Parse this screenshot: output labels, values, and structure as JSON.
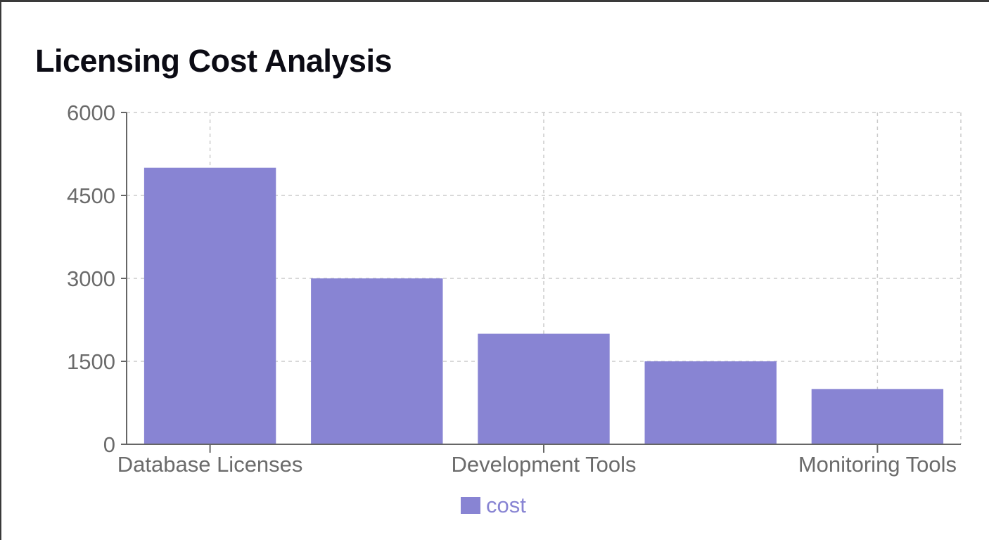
{
  "chart_data": {
    "type": "bar",
    "title": "Licensing Cost Analysis",
    "categories": [
      "Database Licenses",
      "",
      "Development Tools",
      "",
      "Monitoring Tools"
    ],
    "series": [
      {
        "name": "cost",
        "values": [
          5000,
          3000,
          2000,
          1500,
          1000
        ]
      }
    ],
    "xlabel": "",
    "ylabel": "",
    "ylim": [
      0,
      6000
    ],
    "yticks": [
      "0",
      "1500",
      "3000",
      "4500",
      "6000"
    ],
    "xtick_labels": [
      "Database Licenses",
      "Development Tools",
      "Monitoring Tools"
    ],
    "grid": true,
    "legend": "bottom-center",
    "colors": {
      "bar": "#8884d3",
      "grid": "#cccccc",
      "axis": "#666666",
      "text": "#6b6b6b"
    }
  }
}
